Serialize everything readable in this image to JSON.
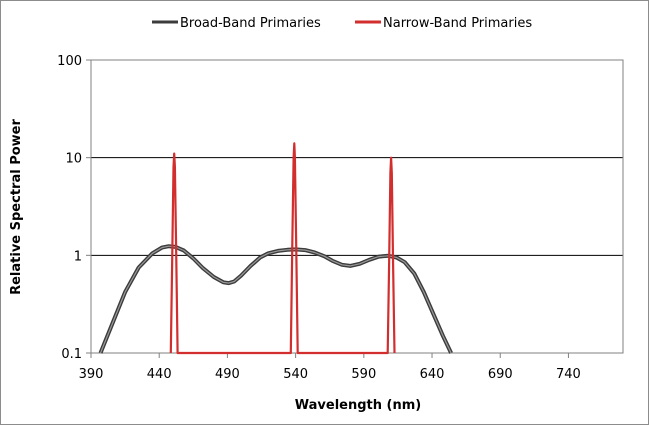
{
  "chart_data": {
    "type": "line",
    "title": "",
    "xlabel": "Wavelength (nm)",
    "ylabel": "Relative Spectral Power",
    "xlim": [
      390,
      780
    ],
    "ylim": [
      0.1,
      100
    ],
    "yscale": "log",
    "x_ticks": [
      "390",
      "440",
      "490",
      "540",
      "590",
      "640",
      "690",
      "740"
    ],
    "y_ticks": [
      "0.1",
      "1",
      "10",
      "100"
    ],
    "grid": "horizontal major gridlines",
    "legend_position": "top",
    "series": [
      {
        "name": "Broad-Band Primaries",
        "color": "#3c3c3c",
        "x": [
          397,
          405,
          415,
          425,
          435,
          442,
          447,
          452,
          458,
          465,
          472,
          480,
          487,
          491,
          495,
          500,
          507,
          514,
          520,
          527,
          534,
          540,
          547,
          554,
          561,
          567,
          574,
          580,
          587,
          594,
          601,
          608,
          614,
          620,
          627,
          634,
          641,
          648,
          654
        ],
        "y": [
          0.1,
          0.19,
          0.42,
          0.75,
          1.05,
          1.2,
          1.24,
          1.22,
          1.12,
          0.93,
          0.74,
          0.6,
          0.53,
          0.52,
          0.54,
          0.62,
          0.78,
          0.95,
          1.05,
          1.11,
          1.14,
          1.15,
          1.13,
          1.07,
          0.98,
          0.88,
          0.8,
          0.78,
          0.82,
          0.9,
          0.97,
          0.99,
          0.95,
          0.85,
          0.65,
          0.42,
          0.25,
          0.15,
          0.1
        ]
      },
      {
        "name": "Narrow-Band Primaries",
        "color": "#d22e2e",
        "x": [
          448.5,
          449.5,
          450.5,
          451,
          451.5,
          452.5,
          453.5,
          536.5,
          537.5,
          538.5,
          539,
          539.5,
          540.5,
          541.5,
          607.5,
          608.5,
          609.5,
          610,
          610.5,
          611.5,
          612.5
        ],
        "y": [
          0.1,
          0.9,
          8,
          11,
          8,
          0.9,
          0.1,
          0.1,
          1.1,
          10,
          14,
          10,
          1.1,
          0.1,
          0.1,
          0.8,
          7,
          10,
          7,
          0.8,
          0.1
        ]
      }
    ]
  }
}
